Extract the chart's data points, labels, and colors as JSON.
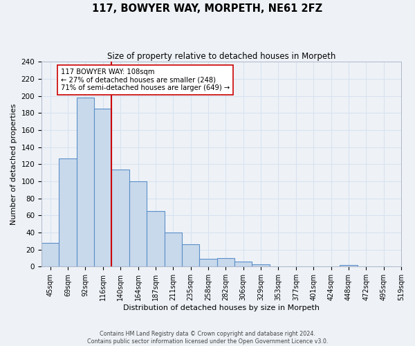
{
  "title": "117, BOWYER WAY, MORPETH, NE61 2FZ",
  "subtitle": "Size of property relative to detached houses in Morpeth",
  "xlabel": "Distribution of detached houses by size in Morpeth",
  "ylabel": "Number of detached properties",
  "bar_labels": [
    "45sqm",
    "69sqm",
    "92sqm",
    "116sqm",
    "140sqm",
    "164sqm",
    "187sqm",
    "211sqm",
    "235sqm",
    "258sqm",
    "282sqm",
    "306sqm",
    "329sqm",
    "353sqm",
    "377sqm",
    "401sqm",
    "424sqm",
    "448sqm",
    "472sqm",
    "495sqm",
    "519sqm"
  ],
  "bar_heights": [
    28,
    127,
    198,
    185,
    114,
    100,
    65,
    40,
    26,
    9,
    10,
    6,
    3,
    0,
    0,
    0,
    0,
    2,
    0,
    0
  ],
  "bar_color": "#c8d9eb",
  "bar_edge_color": "#5b8fc9",
  "vline_position": 3.5,
  "vline_color": "#cc0000",
  "annotation_text": "117 BOWYER WAY: 108sqm\n← 27% of detached houses are smaller (248)\n71% of semi-detached houses are larger (649) →",
  "annotation_box_edge_color": "#cc0000",
  "annotation_box_face_color": "white",
  "ylim": [
    0,
    240
  ],
  "yticks": [
    0,
    20,
    40,
    60,
    80,
    100,
    120,
    140,
    160,
    180,
    200,
    220,
    240
  ],
  "footer_text": "Contains HM Land Registry data © Crown copyright and database right 2024.\nContains public sector information licensed under the Open Government Licence v3.0.",
  "background_color": "#eef2f7",
  "grid_color": "#d8e2ef"
}
